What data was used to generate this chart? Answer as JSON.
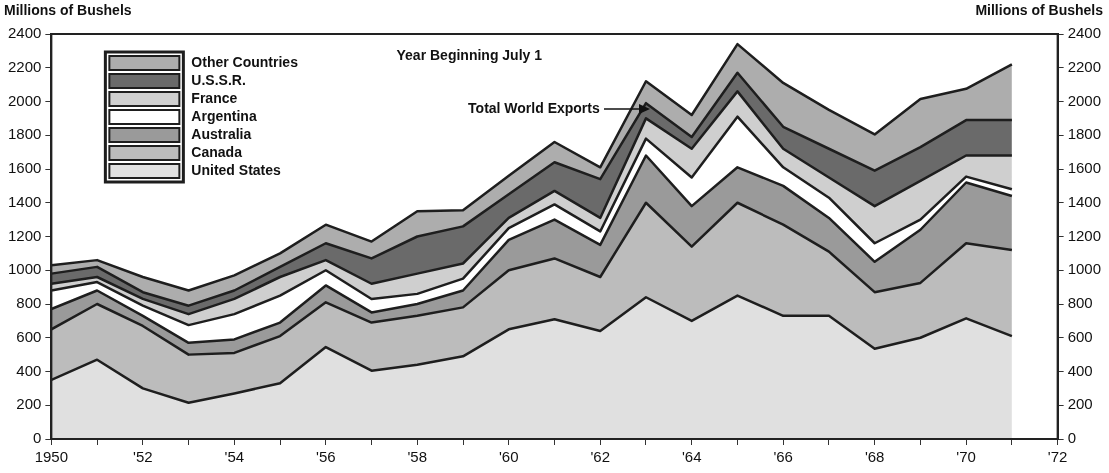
{
  "chart_data": {
    "type": "area",
    "stacked": true,
    "ylabel": "Millions of Bushels",
    "y2label": "Millions of Bushels",
    "annotations": [
      "Year Beginning July 1",
      "Total World Exports"
    ],
    "x": [
      1950,
      1951,
      1952,
      1953,
      1954,
      1955,
      1956,
      1957,
      1958,
      1959,
      1960,
      1961,
      1962,
      1963,
      1964,
      1965,
      1966,
      1967,
      1968,
      1969,
      1970,
      1971
    ],
    "series": [
      {
        "name": "United States",
        "color": "#e0e0e0",
        "values": [
          350,
          470,
          300,
          215,
          270,
          330,
          545,
          405,
          440,
          490,
          650,
          710,
          640,
          840,
          700,
          850,
          730,
          730,
          535,
          600,
          715,
          610
        ]
      },
      {
        "name": "Canada",
        "color": "#bcbcbc",
        "values": [
          300,
          330,
          370,
          285,
          240,
          280,
          265,
          285,
          290,
          290,
          350,
          360,
          320,
          560,
          440,
          550,
          540,
          380,
          335,
          325,
          445,
          510
        ]
      },
      {
        "name": "Australia",
        "color": "#9a9a9a",
        "values": [
          120,
          80,
          60,
          70,
          80,
          80,
          100,
          60,
          70,
          100,
          180,
          230,
          190,
          280,
          240,
          210,
          230,
          200,
          180,
          315,
          360,
          320
        ]
      },
      {
        "name": "Argentina",
        "color": "#ffffff",
        "values": [
          110,
          50,
          60,
          105,
          150,
          160,
          90,
          80,
          60,
          70,
          70,
          90,
          80,
          100,
          170,
          300,
          110,
          120,
          110,
          60,
          35,
          40
        ]
      },
      {
        "name": "France",
        "color": "#cfcfcf",
        "values": [
          40,
          30,
          40,
          65,
          90,
          110,
          60,
          90,
          120,
          90,
          60,
          80,
          80,
          120,
          170,
          150,
          110,
          120,
          220,
          230,
          125,
          200
        ]
      },
      {
        "name": "U.S.S.R.",
        "color": "#6a6a6a",
        "values": [
          60,
          60,
          40,
          50,
          50,
          60,
          100,
          150,
          220,
          220,
          140,
          170,
          230,
          90,
          70,
          110,
          130,
          170,
          210,
          200,
          210,
          210
        ]
      },
      {
        "name": "Other Countries",
        "color": "#adadad",
        "values": [
          50,
          40,
          90,
          90,
          90,
          80,
          110,
          100,
          150,
          95,
          110,
          120,
          70,
          130,
          130,
          170,
          260,
          230,
          215,
          285,
          185,
          330
        ]
      }
    ],
    "xlim": [
      1950,
      1972
    ],
    "xticks": [
      {
        "value": 1950,
        "label": "1950"
      },
      {
        "value": 1951,
        "label": null
      },
      {
        "value": 1952,
        "label": "'52"
      },
      {
        "value": 1953,
        "label": null
      },
      {
        "value": 1954,
        "label": "'54"
      },
      {
        "value": 1955,
        "label": null
      },
      {
        "value": 1956,
        "label": "'56"
      },
      {
        "value": 1957,
        "label": null
      },
      {
        "value": 1958,
        "label": "'58"
      },
      {
        "value": 1959,
        "label": null
      },
      {
        "value": 1960,
        "label": "'60"
      },
      {
        "value": 1961,
        "label": null
      },
      {
        "value": 1962,
        "label": "'62"
      },
      {
        "value": 1963,
        "label": null
      },
      {
        "value": 1964,
        "label": "'64"
      },
      {
        "value": 1965,
        "label": null
      },
      {
        "value": 1966,
        "label": "'66"
      },
      {
        "value": 1967,
        "label": null
      },
      {
        "value": 1968,
        "label": "'68"
      },
      {
        "value": 1969,
        "label": null
      },
      {
        "value": 1970,
        "label": "'70"
      },
      {
        "value": 1971,
        "label": null
      },
      {
        "value": 1972,
        "label": "'72"
      }
    ],
    "ylim": [
      0,
      2400
    ],
    "yticks": [
      0,
      200,
      400,
      600,
      800,
      1000,
      1200,
      1400,
      1600,
      1800,
      2000,
      2200,
      2400
    ],
    "y2lim": [
      0,
      2400
    ],
    "y2ticks": [
      0,
      200,
      400,
      600,
      800,
      1000,
      1200,
      1400,
      1600,
      1800,
      2000,
      2200,
      2400
    ],
    "legend": "top left",
    "grid": false,
    "marker": "none",
    "line_style": "solid"
  }
}
